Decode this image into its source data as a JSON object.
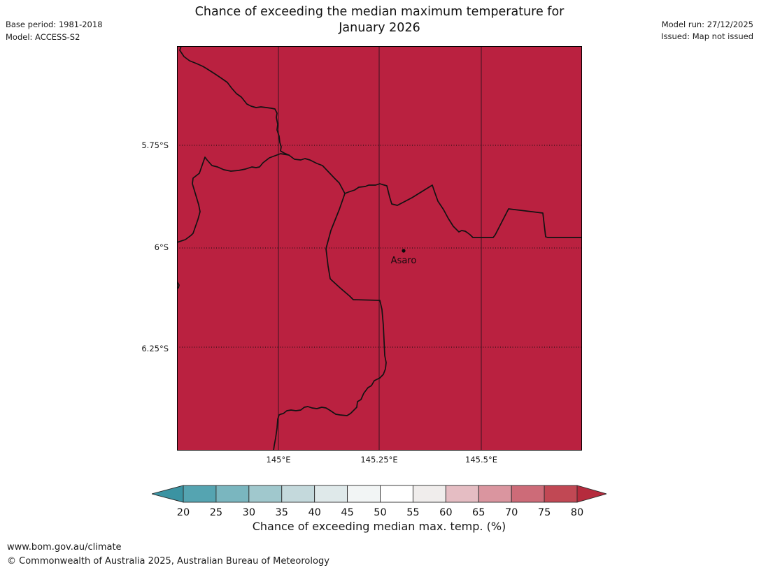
{
  "header": {
    "title_line1": "Chance of exceeding the median maximum temperature for",
    "title_line2": "January 2026",
    "base_period": "Base period: 1981-2018",
    "model": "Model: ACCESS-S2",
    "model_run": "Model run: 27/12/2025",
    "issued": "Issued: Map not issued"
  },
  "map": {
    "place_label": "Asaro",
    "fill_color": "#ba2140",
    "boundary_color": "#121212",
    "lat_ticks": [
      "5.75°S",
      "6°S",
      "6.25°S"
    ],
    "lon_ticks": [
      "145°E",
      "145.25°E",
      "145.5°E"
    ],
    "boundaries": [
      "M 6,0 L 4,6 L 10,15 L 18,21 L 28,25 L 37,29 L 42,32 L 53,39 L 62,45 L 72,52 L 78,60 L 85,68 L 92,73 L 100,83 L 106,86 L 113,88 L 120,87 L 128,88 L 135,89 L 140,90 L 143,96 L 142,102 L 144,112 L 143,120 L 146,129 L 147,138 L 149,144 L 148,150 L 153,153 L 160,156",
      "M 0,281 L 12,277 L 20,271 L 23,268 L 30,248 L 33,237 L 31,227 L 22,197 L 23,189 L 32,182 L 40,159 L 43,163 L 50,171 L 58,173 L 67,177 L 77,179 L 88,178 L 98,176 L 107,173 L 113,174 L 118,173 L 123,167 L 132,160 L 140,157 L 148,154 L 160,156 L 168,162 L 177,163 L 183,161 L 190,163 L 200,168 L 208,171 L 225,189 L 232,196 L 240,211 L 245,209 L 254,206 L 260,202 L 269,201 L 274,199 L 284,199 L 290,197 L 293,198 L 300,200 L 304,216 L 307,226 L 315,228 L 336,217 L 365,199 L 368,208 L 373,222 L 381,234 L 388,247 L 395,258 L 400,263 L 403,266 L 407,264 L 412,265 L 415,267 L 419,270 L 423,274 L 452,274 L 455,270 L 474,233 L 523,239 L 527,273 L 530,274 L 579,274",
      "M 240,211 L 232,234 L 220,264 L 213,290 L 216,315 L 219,333 L 221,335 L 233,346 L 247,358 L 252,363 L 290,364 L 293,377 L 295,400 L 297,443 L 299,453 L 298,462 L 295,470 L 290,475",
      "M 290,475 L 282,479 L 278,486 L 273,489 L 267,497 L 263,506 L 258,509 L 257,517 L 253,521 L 248,526 L 243,529 L 233,528 L 227,527 L 218,521 L 213,518 L 207,517 L 200,519 L 193,518 L 187,516 L 182,517 L 177,521 L 170,522 L 163,521 L 157,522 L 152,526 L 148,527 L 146,528 L 144,534 L 143,547 L 141,561 L 139,572 L 138,579",
      "M 0,337 L 3,342 L 2,346 L 0,347"
    ]
  },
  "colorbar": {
    "ticks": [
      "20",
      "25",
      "30",
      "35",
      "40",
      "45",
      "50",
      "55",
      "60",
      "65",
      "70",
      "75",
      "80"
    ],
    "segment_colors": [
      "#55a4b1",
      "#7ab6bf",
      "#a0c8cd",
      "#c4d9dc",
      "#dfe9ea",
      "#f2f5f5",
      "#ffffff",
      "#f0edec",
      "#e5bdc3",
      "#da959f",
      "#cd6b78",
      "#c14854"
    ],
    "under_color": "#3b93a2",
    "over_color": "#b52b3d",
    "label": "Chance of exceeding median max. temp. (%)"
  },
  "footer": {
    "url": "www.bom.gov.au/climate",
    "copyright": "© Commonwealth of Australia 2025, Australian Bureau of Meteorology"
  },
  "chart_data": {
    "type": "heatmap",
    "title": "Chance of exceeding the median maximum temperature for January 2026",
    "variable": "Chance of exceeding median max. temp. (%)",
    "lon_ticks": [
      "145°E",
      "145.25°E",
      "145.5°E"
    ],
    "lat_ticks": [
      "5.75°S",
      "6°S",
      "6.25°S"
    ],
    "marked_location": "Asaro",
    "colorbar_ticks": [
      20,
      25,
      30,
      35,
      40,
      45,
      50,
      55,
      60,
      65,
      70,
      75,
      80
    ],
    "colorbar_range_shown": "arrows below 20 and above 80",
    "observed_field": "entire mapped region shaded in the above-80% bin (uniform dark red)"
  }
}
